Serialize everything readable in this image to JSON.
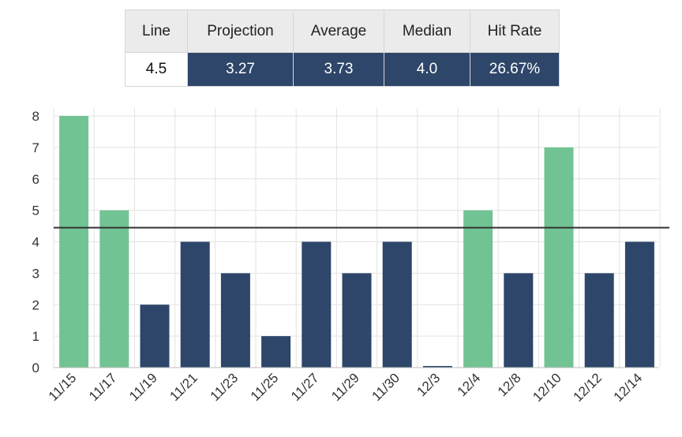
{
  "stats": {
    "headers": {
      "line": "Line",
      "projection": "Projection",
      "average": "Average",
      "median": "Median",
      "hit_rate": "Hit Rate"
    },
    "values": {
      "line": "4.5",
      "projection": "3.27",
      "average": "3.73",
      "median": "4.0",
      "hit_rate": "26.67%"
    }
  },
  "colors": {
    "over": "#72c393",
    "under": "#2d4669",
    "line": "#333333",
    "grid": "#e3e3e3"
  },
  "chart_data": {
    "type": "bar",
    "title": "",
    "xlabel": "",
    "ylabel": "",
    "categories": [
      "11/15",
      "11/17",
      "11/19",
      "11/21",
      "11/23",
      "11/25",
      "11/27",
      "11/29",
      "11/30",
      "12/3",
      "12/4",
      "12/8",
      "12/10",
      "12/12",
      "12/14"
    ],
    "values": [
      8,
      5,
      2,
      4,
      3,
      1,
      4,
      3,
      4,
      0,
      5,
      3,
      7,
      3,
      4
    ],
    "threshold": 4.5,
    "ylim": [
      0,
      8
    ],
    "yticks": [
      0,
      1,
      2,
      3,
      4,
      5,
      6,
      7,
      8
    ],
    "grid": true,
    "legend": "none"
  }
}
